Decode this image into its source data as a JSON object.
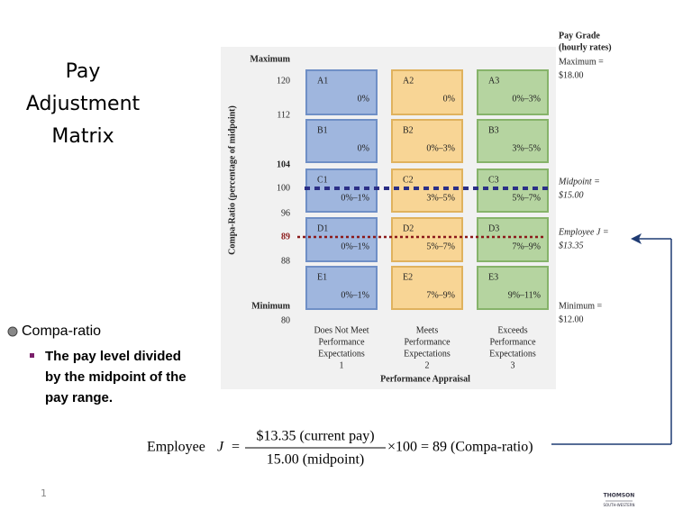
{
  "title": [
    "Pay",
    "Adjustment",
    "Matrix"
  ],
  "bullet": {
    "heading": "Compa-ratio",
    "text": [
      "The pay level divided",
      "by the midpoint of the",
      "pay range."
    ]
  },
  "matrix": {
    "y_axis_label": "Compa-Ratio (percentage of midpoint)",
    "y_labels": [
      "Maximum",
      "120",
      "112",
      "104",
      "100",
      "96",
      "89",
      "88",
      "Minimum",
      "80"
    ],
    "rows": [
      [
        [
          "A1",
          "0%"
        ],
        [
          "A2",
          "0%"
        ],
        [
          "A3",
          "0%–3%"
        ]
      ],
      [
        [
          "B1",
          "0%"
        ],
        [
          "B2",
          "0%–3%"
        ],
        [
          "B3",
          "3%–5%"
        ]
      ],
      [
        [
          "C1",
          "0%–1%"
        ],
        [
          "C2",
          "3%–5%"
        ],
        [
          "C3",
          "5%–7%"
        ]
      ],
      [
        [
          "D1",
          "0%–1%"
        ],
        [
          "D2",
          "5%–7%"
        ],
        [
          "D3",
          "7%–9%"
        ]
      ],
      [
        [
          "E1",
          "0%–1%"
        ],
        [
          "E2",
          "7%–9%"
        ],
        [
          "E3",
          "9%–11%"
        ]
      ]
    ],
    "columns": [
      [
        "Does Not Meet",
        "Performance",
        "Expectations",
        "1"
      ],
      [
        "Meets",
        "Performance",
        "Expectations",
        "2"
      ],
      [
        "Exceeds",
        "Performance",
        "Expectations",
        "3"
      ]
    ],
    "x_axis_label": "Performance Appraisal",
    "pay_grade": {
      "heading": [
        "Pay Grade",
        "(hourly rates)"
      ],
      "items": [
        [
          "Maximum =",
          "$18.00"
        ],
        [
          "Midpoint =",
          "$15.00"
        ],
        [
          "Employee J =",
          "$13.35"
        ],
        [
          "Minimum =",
          "$12.00"
        ]
      ]
    }
  },
  "formula": {
    "lhs": "Employee",
    "variable": "J",
    "equals": "=",
    "numerator": "$13.35 (current pay)",
    "denominator": "15.00 (midpoint)",
    "rhs": "×100 = 89 (Compa-ratio)"
  },
  "page_number": "1",
  "logo": [
    "THOMSON",
    "SOUTH-WESTERN"
  ]
}
